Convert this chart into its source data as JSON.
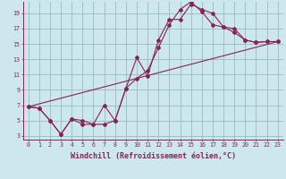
{
  "xlabel": "Windchill (Refroidissement éolien,°C)",
  "bg_color": "#cce8ec",
  "grid_color": "#99bbbb",
  "line_color": "#882255",
  "line1_x": [
    0,
    1,
    2,
    3,
    4,
    5,
    6,
    7,
    8,
    9,
    10,
    11,
    12,
    13,
    14,
    15,
    16,
    17,
    18,
    19,
    20,
    21,
    22,
    23
  ],
  "line1_y": [
    6.8,
    6.6,
    5.0,
    3.2,
    5.2,
    4.5,
    4.5,
    7.0,
    5.0,
    9.2,
    13.2,
    10.8,
    15.5,
    18.2,
    18.2,
    20.2,
    19.5,
    19.0,
    17.2,
    17.0,
    15.5,
    15.2,
    15.3,
    15.3
  ],
  "line2_x": [
    0,
    1,
    2,
    3,
    4,
    5,
    6,
    7,
    8,
    9,
    10,
    11,
    12,
    13,
    14,
    15,
    16,
    17,
    18,
    19,
    20,
    21,
    22,
    23
  ],
  "line2_y": [
    6.8,
    6.6,
    5.0,
    3.2,
    5.2,
    5.0,
    4.5,
    4.5,
    5.0,
    9.2,
    10.5,
    11.5,
    14.5,
    17.5,
    19.5,
    20.5,
    19.2,
    17.5,
    17.2,
    16.5,
    15.5,
    15.2,
    15.3,
    15.3
  ],
  "line3_x": [
    0,
    23
  ],
  "line3_y": [
    6.8,
    15.3
  ],
  "xlim": [
    -0.5,
    23.5
  ],
  "ylim": [
    2.5,
    20.5
  ],
  "xticks": [
    0,
    1,
    2,
    3,
    4,
    5,
    6,
    7,
    8,
    9,
    10,
    11,
    12,
    13,
    14,
    15,
    16,
    17,
    18,
    19,
    20,
    21,
    22,
    23
  ],
  "yticks": [
    3,
    5,
    7,
    9,
    11,
    13,
    15,
    17,
    19
  ],
  "tick_fontsize": 4.8,
  "xlabel_fontsize": 6.0,
  "marker_size": 2.0,
  "line_width": 0.8
}
